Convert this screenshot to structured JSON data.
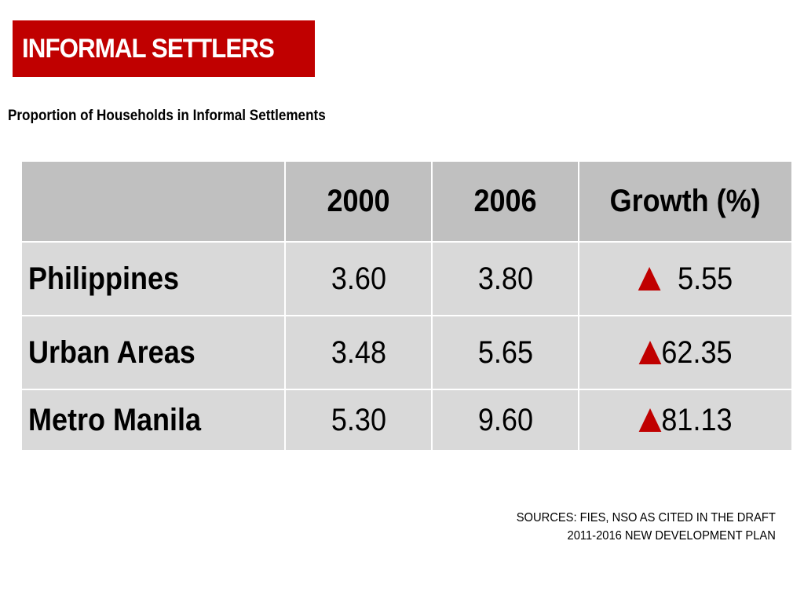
{
  "slide": {
    "title": "INFORMAL SETTLERS",
    "subtitle": "Proportion of Households in Informal Settlements",
    "accent_color": "#c00000"
  },
  "table": {
    "columns": [
      "",
      "2000",
      "2006",
      "Growth (%)"
    ],
    "rows": [
      {
        "label": "Philippines",
        "y2000": "3.60",
        "y2006": "3.80",
        "growth": "5.55",
        "growth_icon": "red-up-triangle-icon"
      },
      {
        "label": "Urban Areas",
        "y2000": "3.48",
        "y2006": "5.65",
        "growth": "62.35",
        "growth_icon": "red-up-triangle-icon"
      },
      {
        "label": "Metro Manila",
        "y2000": "5.30",
        "y2006": "9.60",
        "growth": "81.13",
        "growth_icon": "red-up-triangle-icon"
      }
    ],
    "header_bg": "#c0c0c0",
    "body_bg": "#d9d9d9"
  },
  "sources": {
    "line1": "SOURCES: FIES, NSO AS CITED IN THE DRAFT",
    "line2": "2011-2016 NEW DEVELOPMENT PLAN"
  }
}
